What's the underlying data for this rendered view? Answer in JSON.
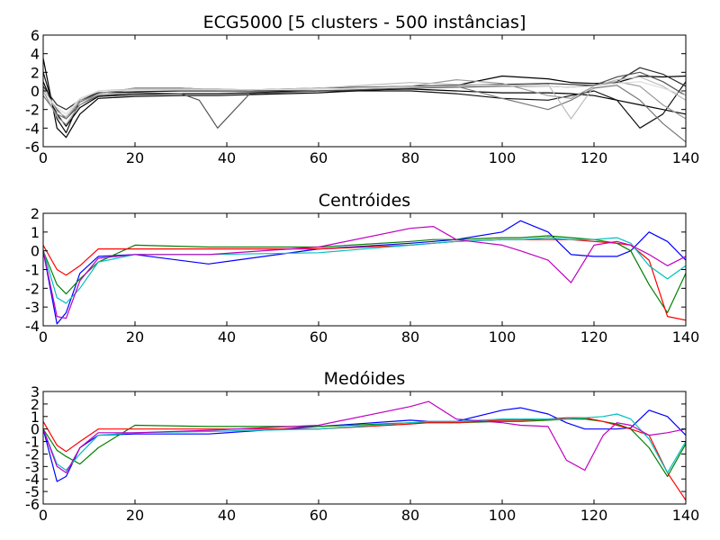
{
  "chart_data": [
    {
      "type": "line",
      "title": "ECG5000 [5 clusters - 500 instâncias]",
      "xlabel": "",
      "ylabel": "",
      "xlim": [
        0,
        140
      ],
      "ylim": [
        -6,
        6
      ],
      "xticks": [
        0,
        20,
        40,
        60,
        80,
        100,
        120,
        140
      ],
      "yticks": [
        -6,
        -4,
        -2,
        0,
        2,
        4,
        6
      ],
      "x": [
        0,
        3,
        5,
        8,
        12,
        20,
        30,
        34,
        38,
        45,
        60,
        80,
        90,
        100,
        110,
        115,
        120,
        125,
        130,
        135,
        140
      ],
      "series": [
        {
          "color": "#000000",
          "values": [
            3.5,
            -4.0,
            -5.0,
            -2.5,
            -0.8,
            -0.6,
            -0.5,
            -0.5,
            -0.5,
            -0.4,
            -0.2,
            0.3,
            0.6,
            1.6,
            1.3,
            0.9,
            0.8,
            0.9,
            1.6,
            1.5,
            1.6
          ]
        },
        {
          "color": "#000000",
          "values": [
            1.0,
            -2.5,
            -3.8,
            -1.8,
            -0.6,
            -0.4,
            -0.3,
            -0.3,
            -0.3,
            -0.2,
            0.0,
            0.2,
            0.0,
            -0.2,
            -0.2,
            -0.3,
            -0.5,
            -1.0,
            -1.5,
            -2.0,
            -2.5
          ]
        },
        {
          "color": "#111111",
          "values": [
            2.0,
            -3.0,
            -4.5,
            -1.0,
            -0.2,
            -0.1,
            0.0,
            0.0,
            0.0,
            0.0,
            0.0,
            0.0,
            -0.3,
            -0.8,
            -1.0,
            -0.5,
            0.0,
            -1.0,
            -4.0,
            -2.5,
            1.0
          ]
        },
        {
          "color": "#2a2a2a",
          "values": [
            0.5,
            -1.5,
            -2.0,
            -1.0,
            -0.3,
            0.3,
            0.3,
            0.2,
            0.1,
            0.1,
            0.3,
            0.5,
            0.6,
            0.7,
            0.8,
            0.7,
            0.6,
            1.0,
            2.5,
            1.8,
            0.5
          ]
        },
        {
          "color": "#555555",
          "values": [
            0.2,
            -2.0,
            -3.0,
            -1.5,
            -0.5,
            -0.2,
            -0.3,
            -1.0,
            -4.0,
            -0.3,
            0.0,
            0.3,
            0.4,
            0.5,
            0.5,
            0.4,
            0.6,
            1.5,
            2.0,
            1.0,
            -0.5
          ]
        },
        {
          "color": "#777777",
          "values": [
            -0.5,
            -2.5,
            -3.0,
            -1.2,
            -0.3,
            0.2,
            0.2,
            0.2,
            0.1,
            0.1,
            0.2,
            0.4,
            0.5,
            -0.8,
            -2.0,
            -1.0,
            0.3,
            0.6,
            -1.0,
            -3.5,
            -5.5
          ]
        },
        {
          "color": "#999999",
          "values": [
            0.0,
            -2.8,
            -3.6,
            -1.5,
            -0.3,
            0.3,
            0.3,
            0.2,
            0.2,
            0.1,
            0.2,
            0.5,
            1.2,
            0.8,
            -0.5,
            -0.8,
            0.5,
            1.0,
            0.5,
            -1.5,
            -3.0
          ]
        },
        {
          "color": "#bbbbbb",
          "values": [
            0.3,
            -2.2,
            -2.8,
            -1.0,
            0.0,
            0.2,
            0.2,
            0.2,
            0.2,
            0.1,
            0.3,
            0.9,
            0.7,
            0.6,
            0.7,
            -3.0,
            0.5,
            1.2,
            1.5,
            0.5,
            -1.0
          ]
        },
        {
          "color": "#dddddd",
          "values": [
            0.0,
            -1.8,
            -2.5,
            -0.8,
            0.0,
            0.1,
            0.1,
            0.1,
            0.1,
            0.1,
            0.2,
            0.4,
            0.5,
            0.6,
            0.5,
            0.4,
            0.5,
            0.8,
            1.0,
            0.3,
            -0.5
          ]
        }
      ]
    },
    {
      "type": "line",
      "title": "Centróides",
      "xlabel": "",
      "ylabel": "",
      "xlim": [
        0,
        140
      ],
      "ylim": [
        -4,
        2
      ],
      "xticks": [
        0,
        20,
        40,
        60,
        80,
        100,
        120,
        140
      ],
      "yticks": [
        -4,
        -3,
        -2,
        -1,
        0,
        1,
        2
      ],
      "x": [
        0,
        3,
        5,
        8,
        12,
        20,
        36,
        60,
        80,
        85,
        90,
        100,
        104,
        110,
        115,
        120,
        125,
        128,
        132,
        136,
        140
      ],
      "series": [
        {
          "color": "#0000ff",
          "values": [
            0.0,
            -3.9,
            -3.3,
            -1.2,
            -0.3,
            -0.2,
            -0.7,
            0.1,
            0.4,
            0.5,
            0.6,
            1.0,
            1.6,
            1.0,
            -0.2,
            -0.3,
            -0.3,
            0.0,
            1.0,
            0.5,
            -0.5
          ]
        },
        {
          "color": "#008000",
          "values": [
            0.0,
            -1.8,
            -2.3,
            -1.5,
            -0.6,
            0.3,
            0.2,
            0.2,
            0.5,
            0.6,
            0.6,
            0.7,
            0.7,
            0.8,
            0.7,
            0.6,
            0.4,
            0.0,
            -1.8,
            -3.3,
            -1.2
          ]
        },
        {
          "color": "#ff0000",
          "values": [
            0.3,
            -1.0,
            -1.3,
            -0.8,
            0.1,
            0.1,
            0.1,
            0.1,
            0.3,
            0.4,
            0.5,
            0.6,
            0.6,
            0.6,
            0.6,
            0.5,
            0.4,
            0.3,
            -0.5,
            -3.5,
            -3.7
          ]
        },
        {
          "color": "#00bfbf",
          "values": [
            0.0,
            -2.5,
            -2.8,
            -2.0,
            -0.6,
            -0.2,
            -0.2,
            -0.1,
            0.3,
            0.4,
            0.5,
            0.6,
            0.6,
            0.7,
            0.6,
            0.6,
            0.7,
            0.4,
            -0.8,
            -1.5,
            -0.8
          ]
        },
        {
          "color": "#bf00bf",
          "values": [
            0.0,
            -3.5,
            -3.6,
            -1.6,
            -0.4,
            -0.2,
            -0.2,
            0.2,
            1.2,
            1.3,
            0.6,
            0.3,
            0.0,
            -0.5,
            -1.7,
            0.3,
            0.5,
            0.3,
            -0.2,
            -0.8,
            -0.3
          ]
        }
      ]
    },
    {
      "type": "line",
      "title": "Medóides",
      "xlabel": "",
      "ylabel": "",
      "xlim": [
        0,
        140
      ],
      "ylim": [
        -6,
        3
      ],
      "xticks": [
        0,
        20,
        40,
        60,
        80,
        100,
        120,
        140
      ],
      "yticks": [
        -6,
        -5,
        -4,
        -3,
        -2,
        -1,
        0,
        1,
        2,
        3
      ],
      "x": [
        0,
        3,
        5,
        8,
        12,
        20,
        36,
        60,
        80,
        84,
        90,
        100,
        104,
        110,
        114,
        118,
        122,
        125,
        128,
        132,
        136,
        140
      ],
      "series": [
        {
          "color": "#0000ff",
          "values": [
            0.0,
            -4.2,
            -3.8,
            -1.5,
            -0.5,
            -0.4,
            -0.4,
            0.2,
            0.7,
            0.6,
            0.6,
            1.5,
            1.7,
            1.2,
            0.5,
            0.0,
            0.0,
            0.0,
            0.1,
            1.5,
            1.0,
            -0.5
          ]
        },
        {
          "color": "#008000",
          "values": [
            0.0,
            -1.7,
            -2.2,
            -2.8,
            -1.5,
            0.3,
            0.2,
            0.2,
            0.5,
            0.5,
            0.5,
            0.6,
            0.6,
            0.7,
            0.8,
            0.8,
            0.6,
            0.4,
            0.0,
            -1.5,
            -3.8,
            -1.2
          ]
        },
        {
          "color": "#ff0000",
          "values": [
            0.6,
            -1.3,
            -1.8,
            -1.0,
            0.0,
            0.0,
            0.0,
            0.0,
            0.4,
            0.5,
            0.5,
            0.7,
            0.7,
            0.8,
            0.9,
            0.9,
            0.6,
            0.3,
            0.0,
            -0.5,
            -3.5,
            -5.7
          ]
        },
        {
          "color": "#00bfbf",
          "values": [
            0.0,
            -2.8,
            -3.3,
            -2.0,
            -0.5,
            -0.3,
            -0.2,
            0.0,
            0.5,
            0.6,
            0.6,
            0.8,
            0.8,
            0.8,
            0.8,
            0.9,
            1.0,
            1.2,
            0.8,
            -0.8,
            -3.5,
            -1.0
          ]
        },
        {
          "color": "#bf00bf",
          "values": [
            0.0,
            -3.0,
            -3.5,
            -1.5,
            -0.3,
            -0.3,
            -0.1,
            0.3,
            1.8,
            2.2,
            0.8,
            0.5,
            0.3,
            0.2,
            -2.5,
            -3.3,
            -0.5,
            0.5,
            0.3,
            -0.5,
            -0.3,
            0.0
          ]
        }
      ]
    }
  ]
}
